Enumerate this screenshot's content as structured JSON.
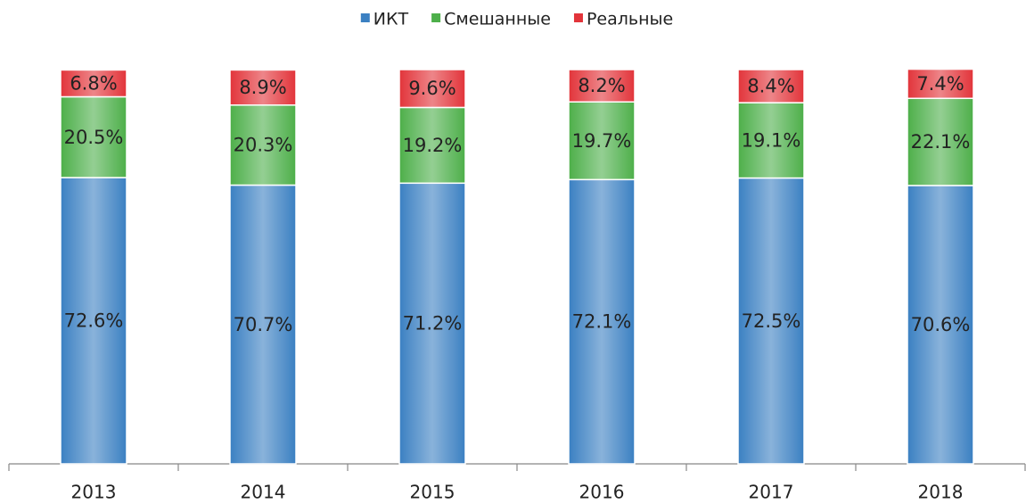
{
  "chart_data": {
    "type": "stacked_bar",
    "categories": [
      "2013",
      "2014",
      "2015",
      "2016",
      "2017",
      "2018"
    ],
    "series": [
      {
        "name": "ИКТ",
        "color": "#3b80c2",
        "values": [
          72.6,
          70.7,
          71.2,
          72.1,
          72.5,
          70.6
        ],
        "value_labels": [
          "72.6%",
          "70.7%",
          "71.2%",
          "72.1%",
          "72.5%",
          "70.6%"
        ]
      },
      {
        "name": "Смешанные",
        "color": "#4daf4a",
        "values": [
          20.5,
          20.3,
          19.2,
          19.7,
          19.1,
          22.1
        ],
        "value_labels": [
          "20.5%",
          "20.3%",
          "19.2%",
          "19.7%",
          "19.1%",
          "22.1%"
        ]
      },
      {
        "name": "Реальные",
        "color": "#e2343a",
        "values": [
          6.8,
          8.9,
          9.6,
          8.2,
          8.4,
          7.4
        ],
        "value_labels": [
          "6.8%",
          "8.9%",
          "9.6%",
          "8.2%",
          "8.4%",
          "7.4%"
        ]
      }
    ],
    "ylim": [
      0,
      100
    ],
    "legend": "top"
  }
}
